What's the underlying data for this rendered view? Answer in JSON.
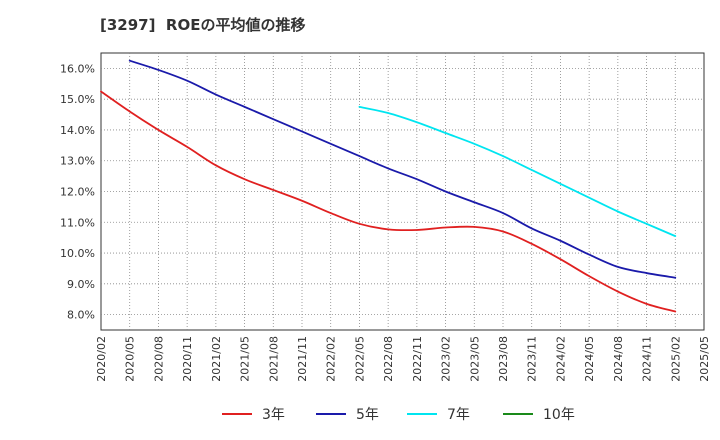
{
  "chart_data": {
    "type": "line",
    "title": "[3297]  ROEの平均値の推移",
    "xlabel": "",
    "ylabel": "",
    "ylim": [
      7.5,
      16.5
    ],
    "grid": true,
    "legend_position": "bottom",
    "x_categories": [
      "2020/02",
      "2020/05",
      "2020/08",
      "2020/11",
      "2021/02",
      "2021/05",
      "2021/08",
      "2021/11",
      "2022/02",
      "2022/05",
      "2022/08",
      "2022/11",
      "2023/02",
      "2023/05",
      "2023/08",
      "2023/11",
      "2024/02",
      "2024/05",
      "2024/08",
      "2024/11",
      "2025/02",
      "2025/05"
    ],
    "y_ticks": [
      8.0,
      9.0,
      10.0,
      11.0,
      12.0,
      13.0,
      14.0,
      15.0,
      16.0
    ],
    "y_tick_labels": [
      "8.0%",
      "9.0%",
      "10.0%",
      "11.0%",
      "12.0%",
      "13.0%",
      "14.0%",
      "15.0%",
      "16.0%"
    ],
    "series": [
      {
        "name": "3年",
        "color": "#e02020",
        "start_index": 0,
        "values": [
          15.25,
          14.6,
          14.0,
          13.45,
          12.85,
          12.4,
          12.05,
          11.7,
          11.3,
          10.95,
          10.77,
          10.75,
          10.83,
          10.85,
          10.7,
          10.3,
          9.8,
          9.25,
          8.75,
          8.35,
          8.1
        ]
      },
      {
        "name": "5年",
        "color": "#1a1aaa",
        "start_index": 1,
        "values": [
          16.25,
          15.95,
          15.6,
          15.15,
          14.75,
          14.35,
          13.95,
          13.55,
          13.15,
          12.75,
          12.4,
          12.0,
          11.65,
          11.3,
          10.8,
          10.4,
          9.95,
          9.55,
          9.35,
          9.2
        ]
      },
      {
        "name": "7年",
        "color": "#00e5f0",
        "start_index": 9,
        "values": [
          14.75,
          14.55,
          14.25,
          13.9,
          13.55,
          13.15,
          12.7,
          12.25,
          11.8,
          11.35,
          10.95,
          10.55
        ]
      },
      {
        "name": "10年",
        "color": "#1a8a1a",
        "start_index": 0,
        "values": []
      }
    ]
  }
}
